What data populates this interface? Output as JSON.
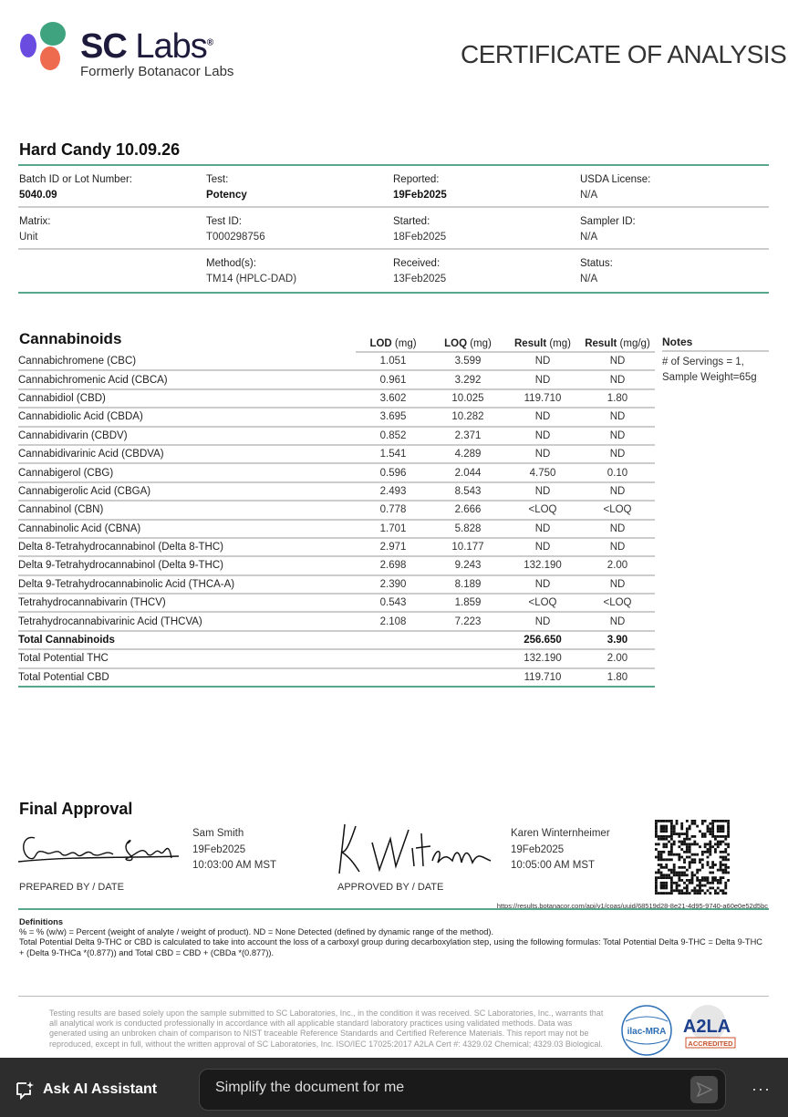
{
  "header": {
    "brand": "SC Labs",
    "brand_sc": "SC",
    "brand_labs": "Labs",
    "registered": "®",
    "subtitle": "Formerly Botanacor Labs",
    "doc_title": "CERTIFICATE OF ANALYSIS",
    "brand_colors": [
      "#3fa37f",
      "#6a4de0",
      "#ef6b4f"
    ]
  },
  "product": {
    "name": "Hard Candy 10.09.26"
  },
  "info": [
    [
      {
        "label": "Batch ID or Lot Number:",
        "value": "5040.09",
        "bold": true
      },
      {
        "label": "Test:",
        "value": "Potency",
        "bold": true
      },
      {
        "label": "Reported:",
        "value": "19Feb2025",
        "bold": true
      },
      {
        "label": "USDA License:",
        "value": "N/A"
      }
    ],
    [
      {
        "label": "Matrix:",
        "value": "Unit"
      },
      {
        "label": "Test ID:",
        "value": "T000298756"
      },
      {
        "label": "Started:",
        "value": "18Feb2025"
      },
      {
        "label": "Sampler ID:",
        "value": "N/A"
      }
    ],
    [
      {
        "label": "",
        "value": ""
      },
      {
        "label": "Method(s):",
        "value": "TM14 (HPLC-DAD)"
      },
      {
        "label": "Received:",
        "value": "13Feb2025"
      },
      {
        "label": "Status:",
        "value": "N/A"
      }
    ]
  ],
  "cannabinoids": {
    "title": "Cannabinoids",
    "columns": [
      {
        "bold": "LOD",
        "unit": " (mg)"
      },
      {
        "bold": "LOQ",
        "unit": " (mg)"
      },
      {
        "bold": "Result",
        "unit": " (mg)"
      },
      {
        "bold": "Result",
        "unit": " (mg/g)"
      }
    ],
    "rows": [
      [
        "Cannabichromene (CBC)",
        "1.051",
        "3.599",
        "ND",
        "ND"
      ],
      [
        "Cannabichromenic Acid (CBCA)",
        "0.961",
        "3.292",
        "ND",
        "ND"
      ],
      [
        "Cannabidiol (CBD)",
        "3.602",
        "10.025",
        "119.710",
        "1.80"
      ],
      [
        "Cannabidiolic Acid (CBDA)",
        "3.695",
        "10.282",
        "ND",
        "ND"
      ],
      [
        "Cannabidivarin (CBDV)",
        "0.852",
        "2.371",
        "ND",
        "ND"
      ],
      [
        "Cannabidivarinic Acid (CBDVA)",
        "1.541",
        "4.289",
        "ND",
        "ND"
      ],
      [
        "Cannabigerol (CBG)",
        "0.596",
        "2.044",
        "4.750",
        "0.10"
      ],
      [
        "Cannabigerolic Acid (CBGA)",
        "2.493",
        "8.543",
        "ND",
        "ND"
      ],
      [
        "Cannabinol (CBN)",
        "0.778",
        "2.666",
        "<LOQ",
        "<LOQ"
      ],
      [
        "Cannabinolic Acid (CBNA)",
        "1.701",
        "5.828",
        "ND",
        "ND"
      ],
      [
        "Delta 8-Tetrahydrocannabinol (Delta 8-THC)",
        "2.971",
        "10.177",
        "ND",
        "ND"
      ],
      [
        "Delta 9-Tetrahydrocannabinol (Delta 9-THC)",
        "2.698",
        "9.243",
        "132.190",
        "2.00"
      ],
      [
        "Delta 9-Tetrahydrocannabinolic Acid (THCA-A)",
        "2.390",
        "8.189",
        "ND",
        "ND"
      ],
      [
        "Tetrahydrocannabivarin (THCV)",
        "0.543",
        "1.859",
        "<LOQ",
        "<LOQ"
      ],
      [
        "Tetrahydrocannabivarinic Acid (THCVA)",
        "2.108",
        "7.223",
        "ND",
        "ND"
      ]
    ],
    "totals": [
      [
        "Total Cannabinoids",
        "",
        "",
        "256.650",
        "3.90"
      ],
      [
        "Total Potential THC",
        "",
        "",
        "132.190",
        "2.00"
      ],
      [
        "Total Potential CBD",
        "",
        "",
        "119.710",
        "1.80"
      ]
    ],
    "notes_title": "Notes",
    "notes": [
      "# of Servings = 1,",
      "Sample Weight=65g"
    ]
  },
  "approval": {
    "title": "Final Approval",
    "prepared": {
      "signature": "Samantha Smith",
      "name": "Sam Smith",
      "date": "19Feb2025",
      "time": "10:03:00 AM MST",
      "label": "PREPARED BY / DATE"
    },
    "approved": {
      "signature": "K Winternheimer",
      "name": "Karen Winternheimer",
      "date": "19Feb2025",
      "time": "10:05:00 AM MST",
      "label": "APPROVED BY / DATE"
    },
    "url": "https://results.botanacor.com/api/v1/coas/uuid/68519d28-8e21-4d95-9740-a60e0e52d5bc"
  },
  "definitions": {
    "title": "Definitions",
    "lines": [
      "% = % (w/w) = Percent (weight of analyte / weight of product). ND = None Detected (defined by dynamic range of the method).",
      "Total Potential Delta 9-THC or CBD is calculated to take into account the loss of a carboxyl group during decarboxylation step, using the following formulas: Total Potential Delta 9-THC = Delta 9-THC + (Delta 9-THCa *(0.877)) and Total CBD = CBD + (CBDa *(0.877))."
    ]
  },
  "disclaimer": "Testing results are based solely upon the sample submitted to SC Laboratories, Inc., in the condition it was received. SC Laboratories, Inc., warrants that all analytical work is conducted professionally in accordance with all applicable standard laboratory practices using validated methods. Data was generated using an unbroken chain of comparison to NIST traceable Reference Standards and Certified Reference Materials. This report may not be reproduced, except in full, without the written approval of SC Laboratories, Inc. ISO/IEC 17025:2017 A2LA Cert #: 4329.02 Chemical; 4329.03 Biological.",
  "badges": {
    "ilac": "ilac-MRA",
    "a2la": "A2LA",
    "accredited": "ACCREDITED"
  },
  "assistant": {
    "label": "Ask AI Assistant",
    "input_value": "Simplify the document for me",
    "more": "···"
  }
}
